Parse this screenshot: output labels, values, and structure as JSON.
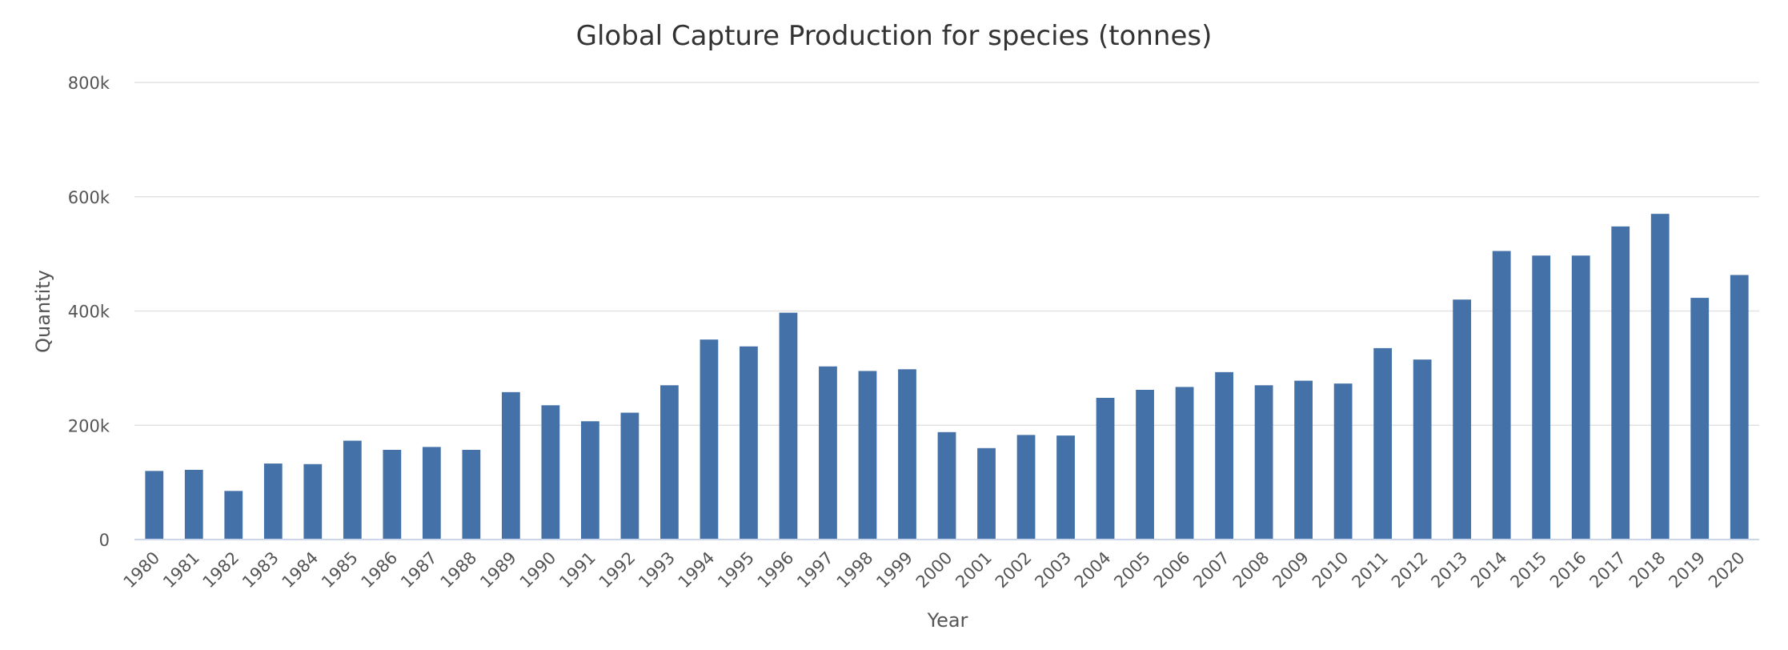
{
  "chart_data": {
    "type": "bar",
    "title": "Global Capture Production for species (tonnes)",
    "xlabel": "Year",
    "ylabel": "Quantity",
    "ylim": [
      0,
      800000
    ],
    "yticks": [
      0,
      200000,
      400000,
      600000,
      800000
    ],
    "ytick_labels": [
      "0",
      "200k",
      "400k",
      "600k",
      "800k"
    ],
    "categories": [
      "1980",
      "1981",
      "1982",
      "1983",
      "1984",
      "1985",
      "1986",
      "1987",
      "1988",
      "1989",
      "1990",
      "1991",
      "1992",
      "1993",
      "1994",
      "1995",
      "1996",
      "1997",
      "1998",
      "1999",
      "2000",
      "2001",
      "2002",
      "2003",
      "2004",
      "2005",
      "2006",
      "2007",
      "2008",
      "2009",
      "2010",
      "2011",
      "2012",
      "2013",
      "2014",
      "2015",
      "2016",
      "2017",
      "2018",
      "2019",
      "2020"
    ],
    "values": [
      120000,
      122000,
      85000,
      133000,
      132000,
      173000,
      157000,
      162000,
      157000,
      258000,
      235000,
      207000,
      222000,
      270000,
      350000,
      338000,
      397000,
      303000,
      295000,
      298000,
      188000,
      160000,
      183000,
      182000,
      248000,
      262000,
      267000,
      293000,
      270000,
      278000,
      273000,
      335000,
      315000,
      420000,
      505000,
      497000,
      497000,
      548000,
      570000,
      423000,
      463000
    ],
    "grid": true,
    "legend": "none",
    "bar_color": "#4472a8"
  }
}
